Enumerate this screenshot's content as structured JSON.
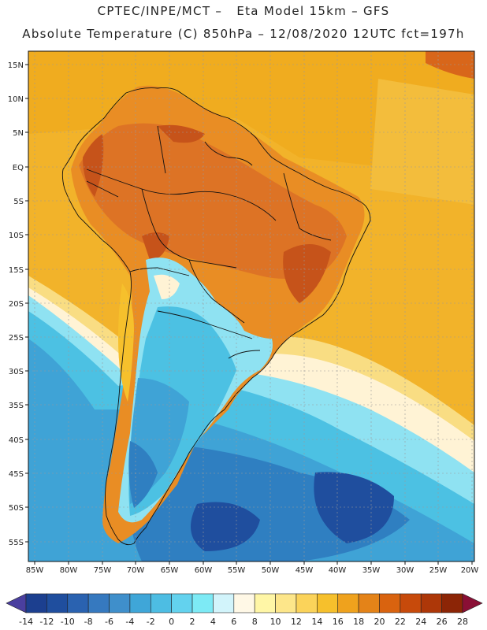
{
  "header": {
    "line1": "CPTEC/INPE/MCT –   Eta Model 15km – GFS",
    "line2": "Absolute Temperature (C) 850hPa – 12/08/2020 12UTC fct=197h"
  },
  "axes": {
    "lat_labels": [
      "15N",
      "10N",
      "5N",
      "EQ",
      "5S",
      "10S",
      "15S",
      "20S",
      "25S",
      "30S",
      "35S",
      "40S",
      "45S",
      "50S",
      "55S"
    ],
    "lon_labels": [
      "85W",
      "80W",
      "75W",
      "70W",
      "65W",
      "60W",
      "55W",
      "50W",
      "45W",
      "40W",
      "35W",
      "30W",
      "25W",
      "20W"
    ]
  },
  "colorbar": {
    "labels": [
      "-14",
      "-12",
      "-10",
      "-8",
      "-6",
      "-4",
      "-2",
      "0",
      "2",
      "4",
      "6",
      "8",
      "10",
      "12",
      "14",
      "16",
      "18",
      "20",
      "22",
      "24",
      "26",
      "28"
    ],
    "colors": [
      "#1c3f8f",
      "#1f4e9e",
      "#2a62b0",
      "#3679bf",
      "#3f8fcb",
      "#3fa6d8",
      "#4dbde3",
      "#63d2ee",
      "#7deaf5",
      "#d2f4fb",
      "#fff8e6",
      "#fff6a6",
      "#fde68a",
      "#fbd35a",
      "#f6c02c",
      "#efa21d",
      "#e48318",
      "#d9630f",
      "#c74a0b",
      "#ad3708",
      "#8c2506"
    ],
    "low_arrow": "#4a3f9f",
    "high_arrow": "#8a0f35"
  }
}
